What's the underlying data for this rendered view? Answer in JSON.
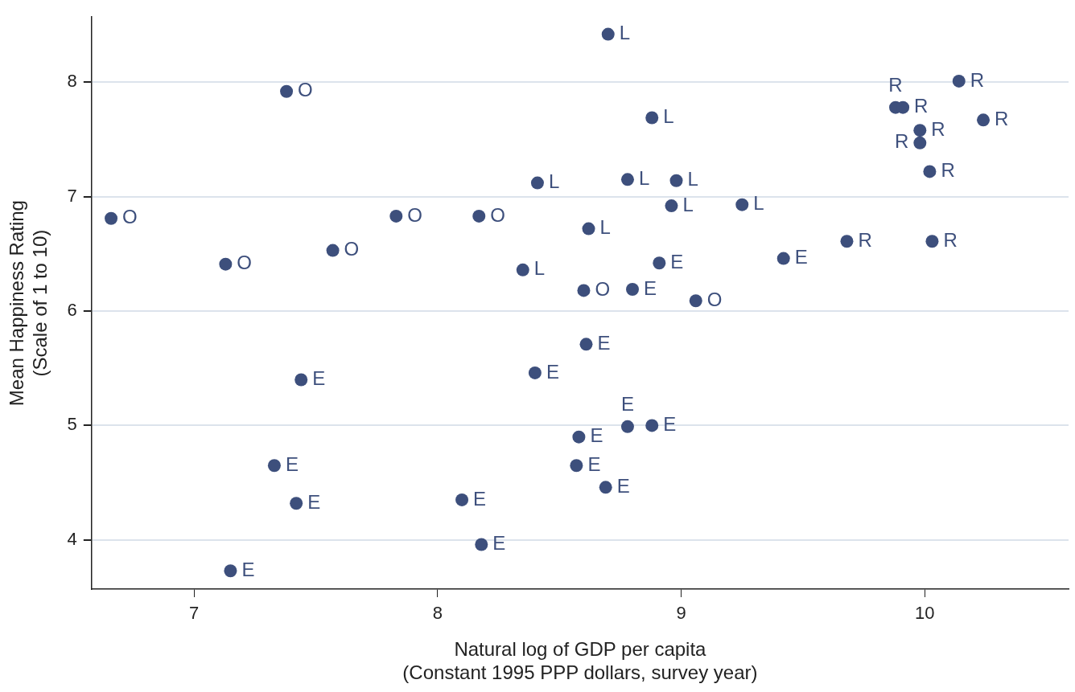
{
  "chart_data": {
    "type": "scatter",
    "xlabel": "Natural log of GDP per capita\n(Constant 1995 PPP dollars, survey year)",
    "ylabel": "Mean Happiness Rating\n(Scale of 1 to 10)",
    "series": [
      {
        "color": "#3d4f7c",
        "x": [
          8.7,
          8.88,
          8.41,
          8.78,
          8.98,
          8.96,
          9.25,
          8.62,
          8.35,
          7.38,
          6.66,
          7.83,
          8.17,
          7.57,
          7.13,
          8.6,
          9.06,
          8.91,
          9.42,
          8.8,
          8.61,
          8.4,
          7.44,
          8.78,
          8.88,
          8.58,
          8.57,
          7.33,
          8.69,
          8.1,
          7.42,
          8.18,
          7.15,
          10.14,
          9.88,
          9.91,
          9.98,
          10.24,
          9.98,
          10.02,
          9.68,
          10.03
        ],
        "values": [
          8.42,
          7.69,
          7.12,
          7.15,
          7.14,
          6.92,
          6.93,
          6.72,
          6.36,
          7.92,
          6.81,
          6.83,
          6.83,
          6.53,
          6.41,
          6.18,
          6.09,
          6.42,
          6.46,
          6.19,
          5.71,
          5.46,
          5.4,
          4.99,
          5.0,
          4.9,
          4.65,
          4.65,
          4.46,
          4.35,
          4.32,
          3.96,
          3.73,
          8.01,
          7.78,
          7.78,
          7.58,
          7.67,
          7.47,
          7.22,
          6.61,
          6.61
        ],
        "value_labels": [
          "L",
          "L",
          "L",
          "L",
          "L",
          "L",
          "L",
          "L",
          "L",
          "O",
          "O",
          "O",
          "O",
          "O",
          "O",
          "O",
          "O",
          "E",
          "E",
          "E",
          "E",
          "E",
          "E",
          "E",
          "E",
          "E",
          "E",
          "E",
          "E",
          "E",
          "E",
          "E",
          "E",
          "R",
          "R",
          "R",
          "R",
          "R",
          "R",
          "R",
          "R",
          "R"
        ]
      }
    ],
    "xlim": [
      6.58,
      10.59
    ],
    "xticks": [
      7,
      8,
      9,
      10
    ],
    "ylim": [
      3.57,
      8.57
    ],
    "yticks": [
      4,
      5,
      6,
      7,
      8
    ],
    "grid": "y",
    "legend": false,
    "marker": "circle"
  }
}
